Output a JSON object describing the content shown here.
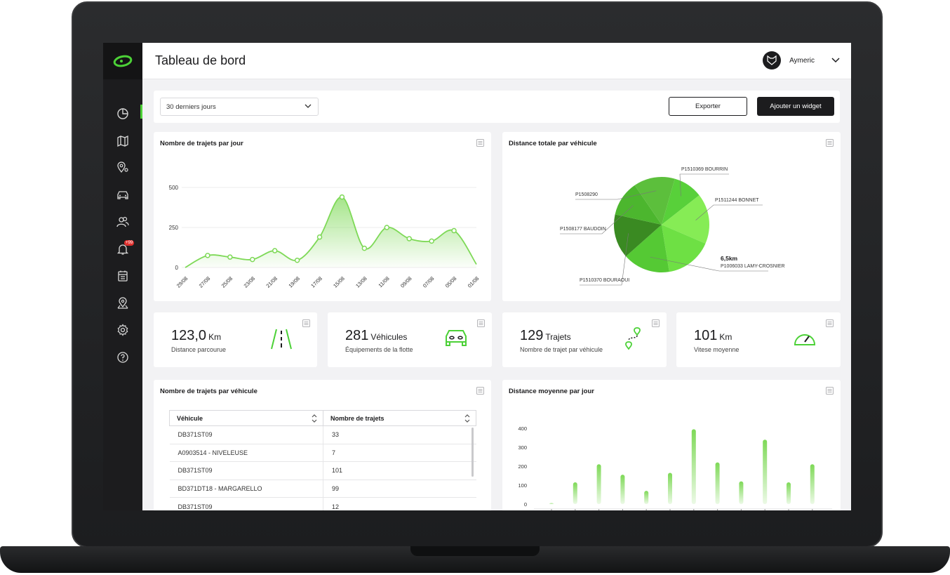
{
  "header": {
    "title": "Tableau de bord",
    "user_name": "Aymeric"
  },
  "sidebar": {
    "items": [
      {
        "icon": "pie-chart-icon",
        "active": true
      },
      {
        "icon": "map-icon"
      },
      {
        "icon": "route-pin-icon"
      },
      {
        "icon": "car-icon"
      },
      {
        "icon": "users-icon"
      },
      {
        "icon": "bell-icon",
        "badge": "+99"
      },
      {
        "icon": "calendar-icon"
      },
      {
        "icon": "location-icon"
      },
      {
        "icon": "gear-icon"
      },
      {
        "icon": "help-icon"
      }
    ]
  },
  "toolbar": {
    "period": "30 derniers jours",
    "export_label": "Exporter",
    "add_widget_label": "Ajouter un widget"
  },
  "trips_chart": {
    "title": "Nombre de trajets par jour",
    "chart_data": {
      "type": "area",
      "x": [
        "29/08",
        "27/08",
        "25/08",
        "23/08",
        "21/08",
        "19/08",
        "17/08",
        "15/08",
        "13/08",
        "11/08",
        "09/08",
        "07/08",
        "05/08",
        "01/08"
      ],
      "values": [
        0,
        75,
        65,
        50,
        105,
        45,
        190,
        440,
        120,
        250,
        180,
        165,
        230,
        20
      ],
      "yticks": [
        0,
        250,
        500
      ],
      "ylim": [
        0,
        500
      ],
      "color": "#7ed957"
    }
  },
  "distance_pie": {
    "title": "Distance totale par véhicule",
    "chart_data": {
      "type": "pie",
      "slices": [
        {
          "label": "P1510369 BOURRIN",
          "value": 10,
          "color": "#58d03a"
        },
        {
          "label": "P1511244 BONNET",
          "value": 17,
          "color": "#86ec55"
        },
        {
          "label": "",
          "value": 16,
          "color": "#6ee044"
        },
        {
          "label": "P1006033 LAMY-CROSNIER",
          "value": 16,
          "color": "#55c934",
          "value_label": "6,5km"
        },
        {
          "label": "P1510370 BOURAOUI",
          "value": 15,
          "color": "#3a8a22"
        },
        {
          "label": "P1508177 BAUDOIN",
          "value": 12,
          "color": "#4cb62e"
        },
        {
          "label": "P1508290",
          "value": 14,
          "color": "#5cbf3c"
        }
      ]
    }
  },
  "kpis": [
    {
      "value": "123,0",
      "unit": "Km",
      "label": "Distance parcourue",
      "icon": "road-icon"
    },
    {
      "value": "281",
      "unit": "Véhicules",
      "label": "Équipements de la flotte",
      "icon": "car-front-icon"
    },
    {
      "value": "129",
      "unit": "Trajets",
      "label": "Nombre de trajet par véhicule",
      "icon": "route-icon"
    },
    {
      "value": "101",
      "unit": "Km",
      "label": "Vitese moyenne",
      "icon": "speedometer-icon"
    }
  ],
  "trips_table": {
    "title": "Nombre de trajets par véhicule",
    "columns": [
      "Véhicule",
      "Nombre de trajets"
    ],
    "rows": [
      [
        "DB371ST09",
        "33"
      ],
      [
        "A0903514 - NIVELEUSE",
        "7"
      ],
      [
        "DB371ST09",
        "101"
      ],
      [
        "BD371DT18 - MARGARELLO",
        "99"
      ],
      [
        "DB371ST09",
        "12"
      ]
    ]
  },
  "distance_bar": {
    "title": "Distance moyenne par jour",
    "chart_data": {
      "type": "bar",
      "values": [
        5,
        115,
        210,
        155,
        70,
        165,
        395,
        220,
        120,
        340,
        115,
        210
      ],
      "yticks": [
        0,
        100,
        200,
        300,
        400
      ],
      "ylim": [
        0,
        400
      ],
      "color": "#7ed957"
    }
  }
}
